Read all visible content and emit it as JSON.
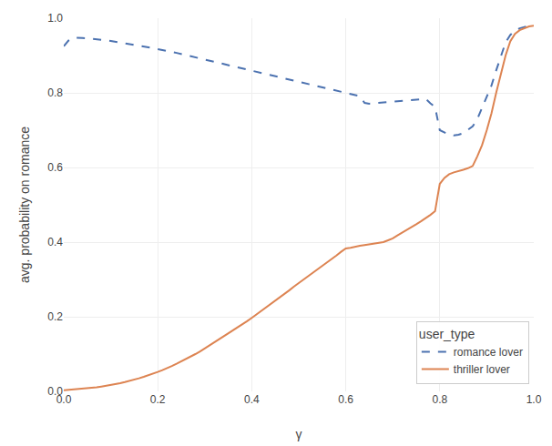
{
  "chart_data": {
    "type": "line",
    "xlabel": "γ",
    "ylabel": "avg. probability on romance",
    "legend_title": "user_type",
    "legend": "lower right",
    "grid": true,
    "xlim": [
      0.0,
      1.0
    ],
    "ylim": [
      0.0,
      1.0
    ],
    "xticks": [
      {
        "value": 0,
        "label": "0.0"
      },
      0.2,
      0.4,
      0.6,
      0.8,
      {
        "value": 1,
        "label": "1.0"
      }
    ],
    "yticks": [
      {
        "value": 0,
        "label": "0.0"
      },
      0.2,
      0.4,
      0.6,
      0.8,
      {
        "value": 1,
        "label": "1.0"
      }
    ],
    "x": [
      0.0,
      0.01,
      0.02,
      0.03,
      0.04,
      0.05,
      0.06,
      0.07,
      0.08,
      0.09,
      0.1,
      0.11,
      0.12,
      0.13,
      0.14,
      0.15,
      0.16,
      0.17,
      0.18,
      0.19,
      0.2,
      0.21,
      0.22,
      0.23,
      0.24,
      0.25,
      0.26,
      0.27,
      0.28,
      0.29,
      0.3,
      0.31,
      0.32,
      0.33,
      0.34,
      0.35,
      0.36,
      0.37,
      0.38,
      0.39,
      0.4,
      0.41,
      0.42,
      0.43,
      0.44,
      0.45,
      0.46,
      0.47,
      0.48,
      0.49,
      0.5,
      0.51,
      0.52,
      0.53,
      0.54,
      0.55,
      0.56,
      0.57,
      0.58,
      0.59,
      0.6,
      0.61,
      0.62,
      0.63,
      0.64,
      0.65,
      0.66,
      0.67,
      0.68,
      0.69,
      0.7,
      0.71,
      0.72,
      0.73,
      0.74,
      0.75,
      0.76,
      0.77,
      0.78,
      0.79,
      0.8,
      0.81,
      0.82,
      0.83,
      0.84,
      0.85,
      0.86,
      0.87,
      0.88,
      0.89,
      0.9,
      0.91,
      0.92,
      0.93,
      0.94,
      0.95,
      0.96,
      0.97,
      0.98,
      0.99,
      1.0
    ],
    "series": [
      {
        "name": "romance lover",
        "color": "#4C72B0",
        "line_style": "dashed",
        "values": [
          0.925,
          0.94,
          0.948,
          0.948,
          0.947,
          0.946,
          0.945,
          0.944,
          0.943,
          0.941,
          0.939,
          0.937,
          0.935,
          0.933,
          0.931,
          0.929,
          0.927,
          0.925,
          0.922,
          0.92,
          0.917,
          0.915,
          0.912,
          0.91,
          0.907,
          0.904,
          0.901,
          0.899,
          0.896,
          0.893,
          0.89,
          0.887,
          0.884,
          0.881,
          0.878,
          0.875,
          0.872,
          0.869,
          0.866,
          0.863,
          0.86,
          0.857,
          0.854,
          0.851,
          0.848,
          0.845,
          0.842,
          0.839,
          0.836,
          0.833,
          0.83,
          0.827,
          0.824,
          0.821,
          0.818,
          0.815,
          0.812,
          0.809,
          0.806,
          0.803,
          0.8,
          0.797,
          0.794,
          0.791,
          0.773,
          0.771,
          0.772,
          0.773,
          0.774,
          0.775,
          0.776,
          0.777,
          0.779,
          0.78,
          0.781,
          0.782,
          0.783,
          0.784,
          0.772,
          0.762,
          0.7,
          0.693,
          0.688,
          0.686,
          0.688,
          0.692,
          0.7,
          0.71,
          0.73,
          0.76,
          0.79,
          0.82,
          0.86,
          0.9,
          0.935,
          0.955,
          0.967,
          0.973,
          0.977,
          0.98,
          0.981
        ]
      },
      {
        "name": "thriller lover",
        "color": "#DD8452",
        "line_style": "solid",
        "values": [
          0.003,
          0.004,
          0.005,
          0.006,
          0.007,
          0.008,
          0.01,
          0.011,
          0.013,
          0.015,
          0.017,
          0.019,
          0.022,
          0.025,
          0.028,
          0.031,
          0.035,
          0.039,
          0.043,
          0.047,
          0.052,
          0.057,
          0.062,
          0.068,
          0.074,
          0.08,
          0.086,
          0.093,
          0.1,
          0.107,
          0.115,
          0.122,
          0.13,
          0.138,
          0.146,
          0.154,
          0.162,
          0.17,
          0.179,
          0.188,
          0.197,
          0.206,
          0.215,
          0.224,
          0.233,
          0.243,
          0.252,
          0.262,
          0.271,
          0.281,
          0.29,
          0.3,
          0.309,
          0.318,
          0.328,
          0.337,
          0.346,
          0.355,
          0.364,
          0.374,
          0.383,
          0.385,
          0.388,
          0.39,
          0.392,
          0.394,
          0.396,
          0.398,
          0.4,
          0.405,
          0.41,
          0.418,
          0.425,
          0.433,
          0.44,
          0.448,
          0.456,
          0.464,
          0.473,
          0.483,
          0.556,
          0.572,
          0.582,
          0.587,
          0.59,
          0.594,
          0.598,
          0.604,
          0.63,
          0.66,
          0.7,
          0.745,
          0.8,
          0.85,
          0.9,
          0.938,
          0.958,
          0.968,
          0.974,
          0.978,
          0.98
        ]
      }
    ]
  }
}
